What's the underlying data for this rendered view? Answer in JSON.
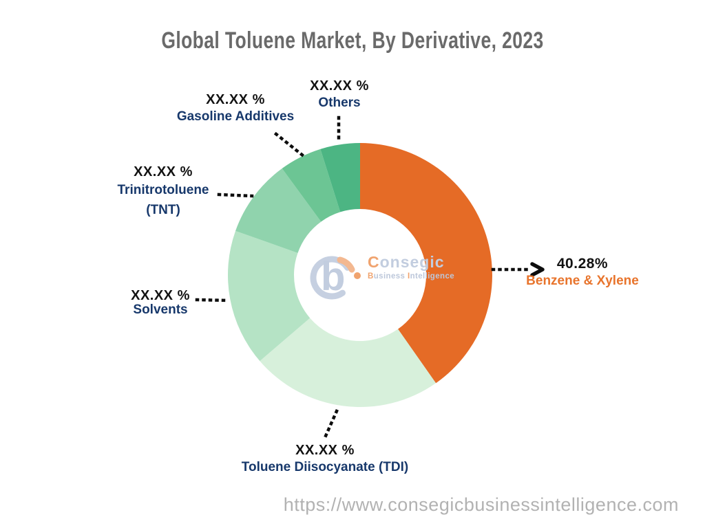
{
  "header": {
    "title": "Global Toluene Market, By Derivative, 2023",
    "title_color": "#6a6a6a"
  },
  "footer": {
    "url": "https://www.consegicbusinessintelligence.com",
    "color": "#b2b2b2"
  },
  "watermark": {
    "brand_initial": "C",
    "brand_rest": "onsegic",
    "tagline_initial_1": "B",
    "tagline_rest_1": "usiness ",
    "tagline_initial_2": "I",
    "tagline_rest_2": "ntelligence",
    "blue": "#c2cddf",
    "orange": "#f0a36e"
  },
  "chart_data": {
    "type": "pie",
    "subtype": "donut",
    "title": "Global Toluene Market, By Derivative, 2023",
    "unit": "%",
    "start_angle_deg": 0,
    "direction": "clockwise",
    "inner_radius_ratio": 0.5,
    "leader_style": "dotted",
    "segments": [
      {
        "label": "Benzene & Xylene",
        "value": 40.28,
        "value_display": "40.28%",
        "color": "#E56B26",
        "label_color": "#E8742C",
        "value_masked": false
      },
      {
        "label": "Toluene Diisocyanate (TDI)",
        "value": 23.42,
        "value_display": "XX.XX %",
        "color": "#D7F0DB",
        "label_color": "#17386B",
        "value_masked": true
      },
      {
        "label": "Solvents",
        "value": 16.72,
        "value_display": "XX.XX %",
        "color": "#B5E3C5",
        "label_color": "#17386B",
        "value_masked": true
      },
      {
        "label": "Trinitrotoluene (TNT)",
        "label_line1": "Trinitrotoluene",
        "label_line2": "(TNT)",
        "value": 9.53,
        "value_display": "XX.XX %",
        "color": "#90D3AD",
        "label_color": "#17386B",
        "value_masked": true
      },
      {
        "label": "Gasoline Additives",
        "value": 5.2,
        "value_display": "XX.XX %",
        "color": "#6CC594",
        "label_color": "#17386B",
        "value_masked": true
      },
      {
        "label": "Others",
        "value": 4.85,
        "value_display": "XX.XX %",
        "color": "#4CB583",
        "label_color": "#17386B",
        "value_masked": true
      }
    ]
  }
}
